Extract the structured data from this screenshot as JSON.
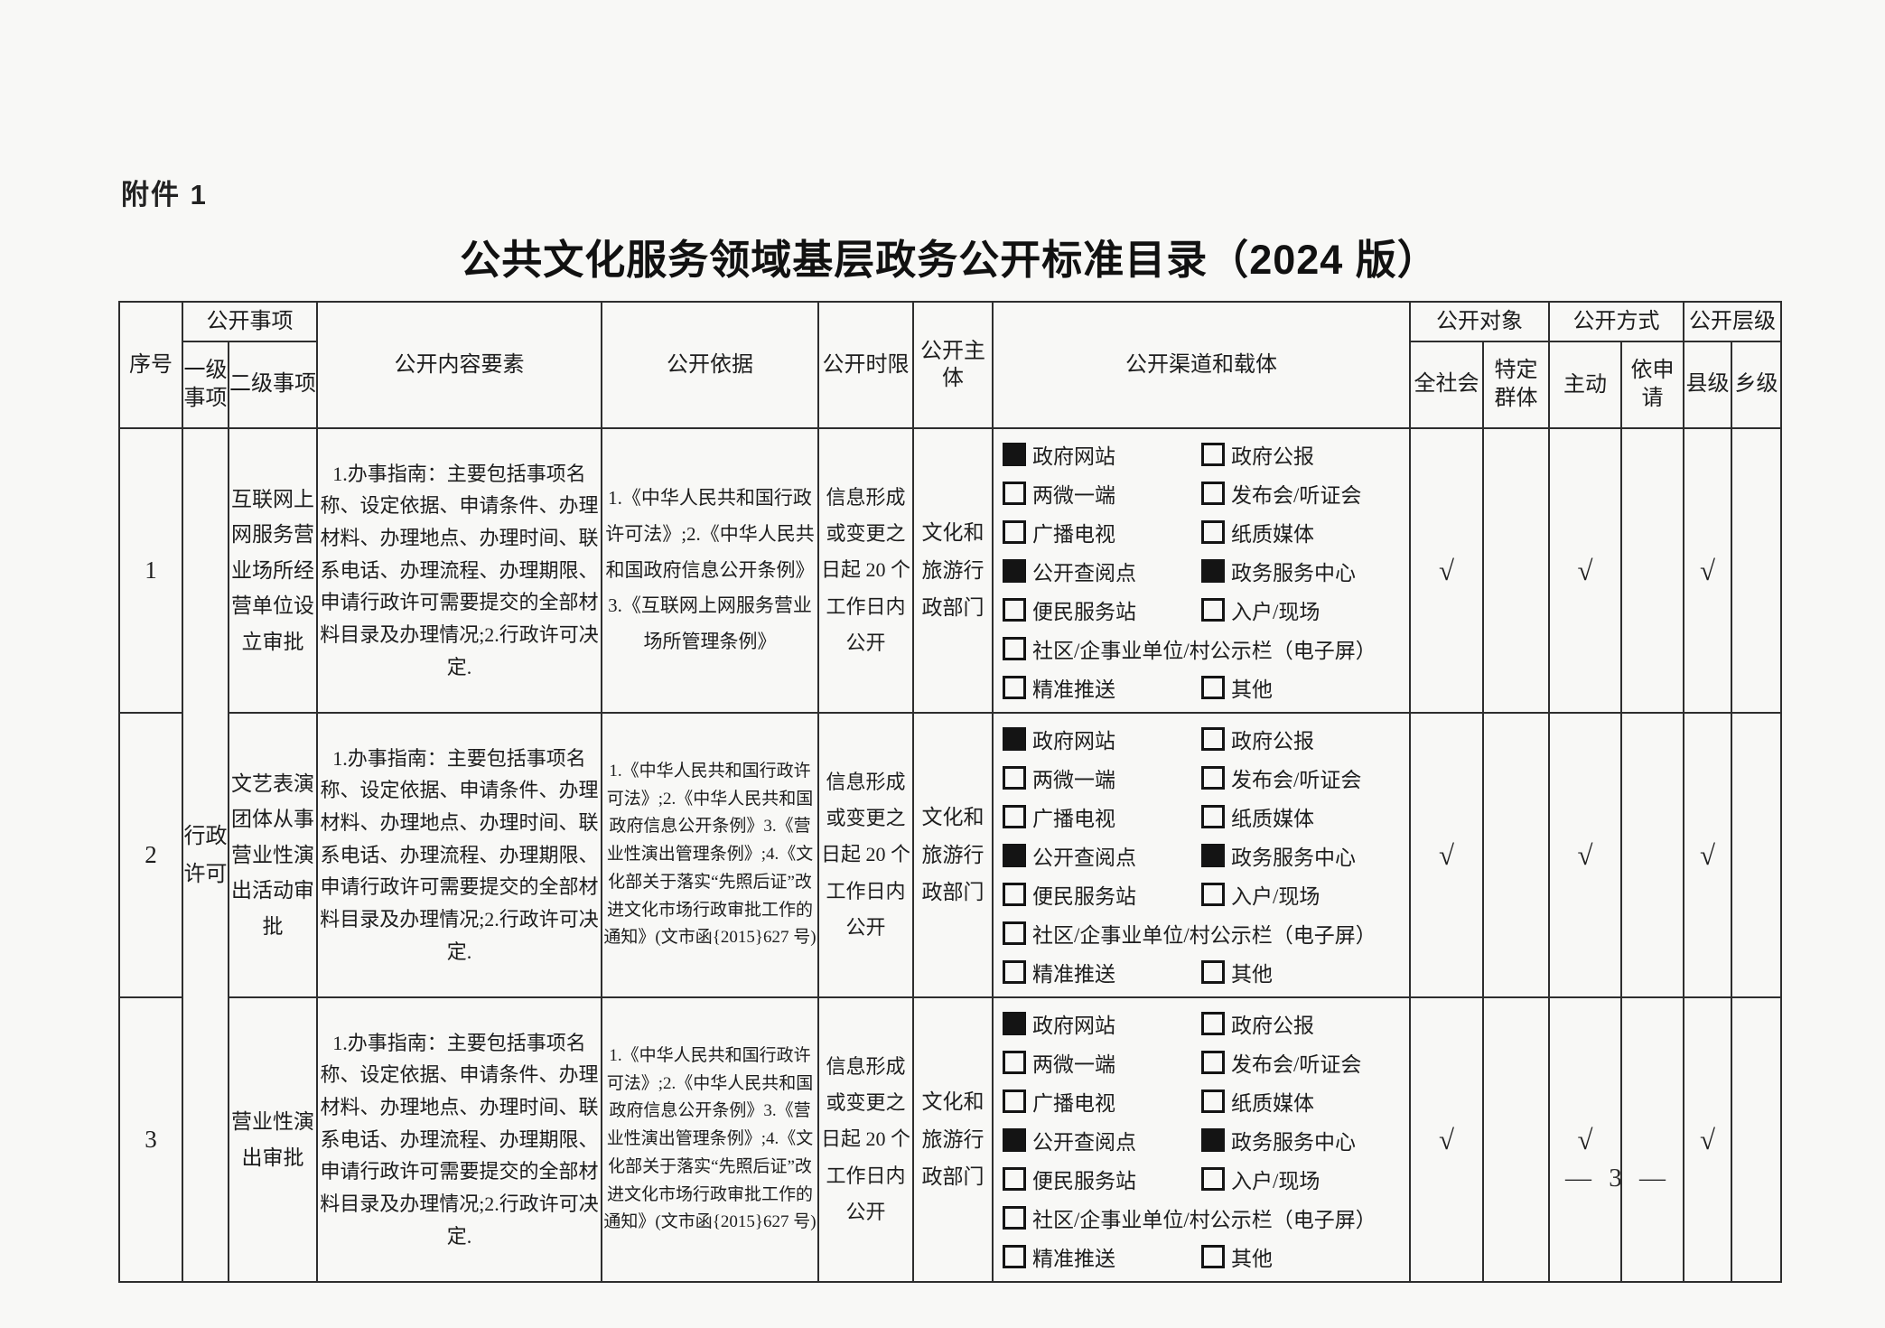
{
  "page": {
    "attachment_label": "附件 1",
    "title": "公共文化服务领域基层政务公开标准目录（2024 版）",
    "page_number": "— 3 —"
  },
  "table": {
    "header": {
      "serial_no": "序号",
      "disclosure_items": "公开事项",
      "first_level": "一级事项",
      "second_level": "二级事项",
      "content_elements": "公开内容要素",
      "basis": "公开依据",
      "time_limit": "公开时限",
      "subject": "公开主体",
      "channels": "公开渠道和载体",
      "audience": "公开对象",
      "all_society": "全社会",
      "specific_groups": "特定群体",
      "method": "公开方式",
      "proactive": "主动",
      "on_request": "依申请",
      "level": "公开层级",
      "county": "县级",
      "township": "乡级"
    },
    "first_level_item": "行政许可",
    "rows": [
      {
        "no": "1",
        "second_level_item": "互联网上网服务营业场所经营单位设立审批",
        "content_elements": "1.办事指南：主要包括事项名称、设定依据、申请条件、办理材料、办理地点、办理时间、联系电话、办理流程、办理期限、申请行政许可需要提交的全部材料目录及办理情况;2.行政许可决定.",
        "basis": "1.《中华人民共和国行政许可法》;2.《中华人民共和国政府信息公开条例》3.《互联网上网服务营业场所管理条例》",
        "time_limit": "信息形成或变更之日起 20 个工作日内公开",
        "subject": "文化和旅游行政部门",
        "channels": [
          {
            "label": "政府网站",
            "checked": true
          },
          {
            "label": "政府公报",
            "checked": false
          },
          {
            "label": "两微一端",
            "checked": false
          },
          {
            "label": "发布会/听证会",
            "checked": false
          },
          {
            "label": "广播电视",
            "checked": false
          },
          {
            "label": "纸质媒体",
            "checked": false
          },
          {
            "label": "公开查阅点",
            "checked": true
          },
          {
            "label": "政务服务中心",
            "checked": true
          },
          {
            "label": "便民服务站",
            "checked": false
          },
          {
            "label": "入户/现场",
            "checked": false
          },
          {
            "label": "社区/企事业单位/村公示栏（电子屏）",
            "checked": false,
            "wide": true
          },
          {
            "label": "精准推送",
            "checked": false
          },
          {
            "label": "其他",
            "checked": false
          }
        ],
        "marks": {
          "all_society": "√",
          "specific_groups": "",
          "proactive": "√",
          "on_request": "",
          "county": "√",
          "township": ""
        }
      },
      {
        "no": "2",
        "second_level_item": "文艺表演团体从事营业性演出活动审批",
        "content_elements": "1.办事指南：主要包括事项名称、设定依据、申请条件、办理材料、办理地点、办理时间、联系电话、办理流程、办理期限、申请行政许可需要提交的全部材料目录及办理情况;2.行政许可决定.",
        "basis": "1.《中华人民共和国行政许可法》;2.《中华人民共和国政府信息公开条例》3.《营业性演出管理条例》;4.《文化部关于落实“先照后证”改进文化市场行政审批工作的通知》(文市函{2015}627 号)",
        "time_limit": "信息形成或变更之日起 20 个工作日内公开",
        "subject": "文化和旅游行政部门",
        "channels": [
          {
            "label": "政府网站",
            "checked": true
          },
          {
            "label": "政府公报",
            "checked": false
          },
          {
            "label": "两微一端",
            "checked": false
          },
          {
            "label": "发布会/听证会",
            "checked": false
          },
          {
            "label": "广播电视",
            "checked": false
          },
          {
            "label": "纸质媒体",
            "checked": false
          },
          {
            "label": "公开查阅点",
            "checked": true
          },
          {
            "label": "政务服务中心",
            "checked": true
          },
          {
            "label": "便民服务站",
            "checked": false
          },
          {
            "label": "入户/现场",
            "checked": false
          },
          {
            "label": "社区/企事业单位/村公示栏（电子屏）",
            "checked": false,
            "wide": true
          },
          {
            "label": "精准推送",
            "checked": false
          },
          {
            "label": "其他",
            "checked": false
          }
        ],
        "marks": {
          "all_society": "√",
          "specific_groups": "",
          "proactive": "√",
          "on_request": "",
          "county": "√",
          "township": ""
        }
      },
      {
        "no": "3",
        "second_level_item": "营业性演出审批",
        "content_elements": "1.办事指南：主要包括事项名称、设定依据、申请条件、办理材料、办理地点、办理时间、联系电话、办理流程、办理期限、申请行政许可需要提交的全部材料目录及办理情况;2.行政许可决定.",
        "basis": "1.《中华人民共和国行政许可法》;2.《中华人民共和国政府信息公开条例》3.《营业性演出管理条例》;4.《文化部关于落实“先照后证”改进文化市场行政审批工作的通知》(文市函{2015}627 号)",
        "time_limit": "信息形成或变更之日起 20 个工作日内公开",
        "subject": "文化和旅游行政部门",
        "channels": [
          {
            "label": "政府网站",
            "checked": true
          },
          {
            "label": "政府公报",
            "checked": false
          },
          {
            "label": "两微一端",
            "checked": false
          },
          {
            "label": "发布会/听证会",
            "checked": false
          },
          {
            "label": "广播电视",
            "checked": false
          },
          {
            "label": "纸质媒体",
            "checked": false
          },
          {
            "label": "公开查阅点",
            "checked": true
          },
          {
            "label": "政务服务中心",
            "checked": true
          },
          {
            "label": "便民服务站",
            "checked": false
          },
          {
            "label": "入户/现场",
            "checked": false
          },
          {
            "label": "社区/企事业单位/村公示栏（电子屏）",
            "checked": false,
            "wide": true
          },
          {
            "label": "精准推送",
            "checked": false
          },
          {
            "label": "其他",
            "checked": false
          }
        ],
        "marks": {
          "all_society": "√",
          "specific_groups": "",
          "proactive": "√",
          "on_request": "",
          "county": "√",
          "township": ""
        }
      }
    ]
  }
}
